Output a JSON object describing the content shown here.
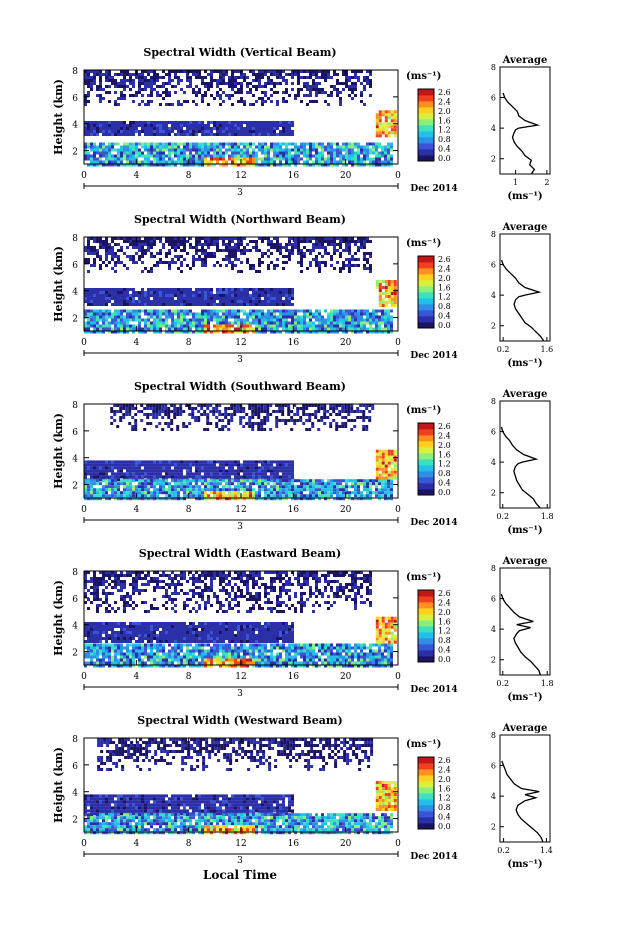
{
  "figure": {
    "y_label": "Height (km)",
    "x_label": "Local Time",
    "date_label": "Dec 2014",
    "day_label": "3",
    "unit_label": "(ms⁻¹)",
    "average_title": "Average",
    "average_unit": "(ms⁻¹)"
  },
  "colorbar": {
    "ticks": [
      "2.6",
      "2.4",
      "2.0",
      "1.6",
      "1.2",
      "0.8",
      "0.4",
      "0.0"
    ],
    "vmin": 0.0,
    "vmax": 2.8,
    "colors": [
      "#1b1464",
      "#2b2fa8",
      "#3a55d6",
      "#2f8fe6",
      "#20c0e8",
      "#3fe0c0",
      "#8af07a",
      "#d8f040",
      "#ffd020",
      "#ff9020",
      "#f04020",
      "#c01818"
    ]
  },
  "chart_data": [
    {
      "type": "heatmap",
      "title": "Spectral Width (Vertical Beam)",
      "beam": "vertical",
      "xlabel": "",
      "ylabel": "Height (km)",
      "xlim": [
        0,
        24
      ],
      "ylim": [
        1,
        8
      ],
      "xticks": [
        "0",
        "4",
        "8",
        "12",
        "16",
        "20",
        "0"
      ],
      "yticks": [
        "2",
        "4",
        "6",
        "8"
      ],
      "clouds": [
        {
          "layer": "upper",
          "x": [
            0,
            22
          ],
          "y": [
            5.4,
            8
          ],
          "value": 0.2
        },
        {
          "layer": "middle",
          "x": [
            0,
            16
          ],
          "y": [
            3.2,
            4.2
          ],
          "value": 0.3
        },
        {
          "layer": "lower",
          "x": [
            0,
            23.5
          ],
          "y": [
            1,
            2.6
          ],
          "value": 0.8
        },
        {
          "layer": "top-right",
          "x": [
            22.3,
            23.9
          ],
          "y": [
            3.2,
            5
          ],
          "value": 2.4
        }
      ],
      "average": {
        "title": "Average",
        "xticks": [
          "1",
          "2"
        ],
        "xlim": [
          0.5,
          2.1
        ],
        "yticks": [
          "2",
          "4",
          "6",
          "8"
        ],
        "ylim": [
          1,
          8
        ],
        "x": [
          1.5,
          1.6,
          1.45,
          1.5,
          1.3,
          1.2,
          1.05,
          0.95,
          0.9,
          0.95,
          1.0,
          1.1,
          1.7,
          1.3,
          1.1,
          1.05,
          0.9,
          0.75,
          0.65,
          0.6
        ],
        "y": [
          1.0,
          1.3,
          1.6,
          1.9,
          2.2,
          2.5,
          2.8,
          3.1,
          3.4,
          3.7,
          3.9,
          4.0,
          4.2,
          4.5,
          4.8,
          5.1,
          5.4,
          5.7,
          6.0,
          6.3
        ]
      }
    },
    {
      "type": "heatmap",
      "title": "Spectral Width (Northward Beam)",
      "beam": "northward",
      "xlabel": "",
      "ylabel": "Height (km)",
      "xlim": [
        0,
        24
      ],
      "ylim": [
        1,
        8
      ],
      "xticks": [
        "0",
        "4",
        "8",
        "12",
        "16",
        "20",
        "0"
      ],
      "yticks": [
        "2",
        "4",
        "6",
        "8"
      ],
      "clouds": [
        {
          "layer": "upper",
          "x": [
            0,
            22
          ],
          "y": [
            5.4,
            8
          ],
          "value": 0.2
        },
        {
          "layer": "middle",
          "x": [
            0,
            16
          ],
          "y": [
            3.0,
            4.2
          ],
          "value": 0.3
        },
        {
          "layer": "lower",
          "x": [
            0,
            23.5
          ],
          "y": [
            1,
            2.6
          ],
          "value": 0.8
        },
        {
          "layer": "top-right",
          "x": [
            22.3,
            23.9
          ],
          "y": [
            3.0,
            4.8
          ],
          "value": 2.4
        }
      ],
      "average": {
        "title": "Average",
        "xticks": [
          "0.2",
          "1.6"
        ],
        "xlim": [
          0.1,
          1.7
        ],
        "yticks": [
          "2",
          "4",
          "6",
          "8"
        ],
        "ylim": [
          1,
          8
        ],
        "x": [
          1.5,
          1.4,
          1.25,
          1.1,
          0.9,
          0.8,
          0.7,
          0.6,
          0.55,
          0.6,
          0.7,
          0.9,
          1.35,
          0.9,
          0.7,
          0.6,
          0.45,
          0.3,
          0.2,
          0.15
        ],
        "y": [
          1.0,
          1.3,
          1.6,
          1.9,
          2.2,
          2.5,
          2.8,
          3.1,
          3.4,
          3.7,
          3.9,
          4.0,
          4.2,
          4.5,
          4.8,
          5.1,
          5.4,
          5.7,
          6.0,
          6.3
        ]
      }
    },
    {
      "type": "heatmap",
      "title": "Spectral Width (Southward Beam)",
      "beam": "southward",
      "xlabel": "",
      "ylabel": "Height (km)",
      "xlim": [
        0,
        24
      ],
      "ylim": [
        1,
        8
      ],
      "xticks": [
        "0",
        "4",
        "8",
        "12",
        "16",
        "20",
        "0"
      ],
      "yticks": [
        "2",
        "4",
        "6",
        "8"
      ],
      "clouds": [
        {
          "layer": "upper",
          "x": [
            2,
            22
          ],
          "y": [
            6.0,
            8
          ],
          "value": 0.2
        },
        {
          "layer": "middle",
          "x": [
            0,
            16
          ],
          "y": [
            2.4,
            3.8
          ],
          "value": 0.3
        },
        {
          "layer": "lower",
          "x": [
            0,
            23.5
          ],
          "y": [
            1,
            2.4
          ],
          "value": 0.8
        },
        {
          "layer": "top-right",
          "x": [
            22.3,
            23.9
          ],
          "y": [
            2.4,
            4.6
          ],
          "value": 2.2
        }
      ],
      "average": {
        "title": "Average",
        "xticks": [
          "0.2",
          "1.8"
        ],
        "xlim": [
          0.1,
          1.9
        ],
        "yticks": [
          "2",
          "4",
          "6",
          "8"
        ],
        "ylim": [
          1,
          8
        ],
        "x": [
          1.55,
          1.4,
          1.3,
          1.1,
          0.9,
          0.8,
          0.7,
          0.65,
          0.6,
          0.65,
          0.75,
          0.9,
          1.4,
          0.95,
          0.7,
          0.55,
          0.45,
          0.3,
          0.2,
          0.15
        ],
        "y": [
          1.0,
          1.3,
          1.6,
          1.9,
          2.2,
          2.5,
          2.8,
          3.1,
          3.4,
          3.7,
          3.9,
          4.0,
          4.2,
          4.5,
          4.8,
          5.1,
          5.4,
          5.7,
          6.0,
          6.3
        ]
      }
    },
    {
      "type": "heatmap",
      "title": "Spectral Width (Eastward Beam)",
      "beam": "eastward",
      "xlabel": "",
      "ylabel": "Height (km)",
      "xlim": [
        0,
        24
      ],
      "ylim": [
        1,
        8
      ],
      "xticks": [
        "0",
        "4",
        "8",
        "12",
        "16",
        "20",
        "0"
      ],
      "yticks": [
        "2",
        "4",
        "6",
        "8"
      ],
      "clouds": [
        {
          "layer": "upper",
          "x": [
            0,
            22
          ],
          "y": [
            5.0,
            8
          ],
          "value": 0.2
        },
        {
          "layer": "middle",
          "x": [
            0,
            16
          ],
          "y": [
            2.8,
            4.2
          ],
          "value": 0.3
        },
        {
          "layer": "lower",
          "x": [
            0,
            23.5
          ],
          "y": [
            1,
            2.6
          ],
          "value": 0.9
        },
        {
          "layer": "top-right",
          "x": [
            22.3,
            23.9
          ],
          "y": [
            2.8,
            4.6
          ],
          "value": 2.4
        }
      ],
      "average": {
        "title": "Average",
        "xticks": [
          "0.2",
          "1.8"
        ],
        "xlim": [
          0.1,
          1.9
        ],
        "yticks": [
          "2",
          "4",
          "6",
          "8"
        ],
        "ylim": [
          1,
          8
        ],
        "x": [
          1.55,
          1.5,
          1.35,
          1.2,
          1.0,
          0.85,
          0.75,
          0.65,
          0.6,
          0.7,
          0.8,
          1.2,
          0.7,
          1.3,
          0.8,
          0.6,
          0.45,
          0.3,
          0.2,
          0.15
        ],
        "y": [
          1.0,
          1.3,
          1.6,
          1.9,
          2.2,
          2.5,
          2.8,
          3.1,
          3.4,
          3.7,
          3.9,
          4.1,
          4.3,
          4.5,
          4.8,
          5.1,
          5.4,
          5.7,
          6.0,
          6.3
        ]
      }
    },
    {
      "type": "heatmap",
      "title": "Spectral Width (Westward Beam)",
      "beam": "westward",
      "xlabel": "Local Time",
      "ylabel": "Height (km)",
      "xlim": [
        0,
        24
      ],
      "ylim": [
        1,
        8
      ],
      "xticks": [
        "0",
        "4",
        "8",
        "12",
        "16",
        "20",
        "0"
      ],
      "yticks": [
        "2",
        "4",
        "6",
        "8"
      ],
      "clouds": [
        {
          "layer": "upper",
          "x": [
            1,
            22
          ],
          "y": [
            5.6,
            8
          ],
          "value": 0.2
        },
        {
          "layer": "middle",
          "x": [
            0,
            16
          ],
          "y": [
            2.4,
            3.8
          ],
          "value": 0.3
        },
        {
          "layer": "lower",
          "x": [
            0,
            23.5
          ],
          "y": [
            1,
            2.4
          ],
          "value": 0.8
        },
        {
          "layer": "top-right",
          "x": [
            22.3,
            23.9
          ],
          "y": [
            2.6,
            4.8
          ],
          "value": 2.2
        }
      ],
      "average": {
        "title": "Average",
        "xticks": [
          "0.2",
          "1.4"
        ],
        "xlim": [
          0.1,
          1.5
        ],
        "yticks": [
          "2",
          "4",
          "6",
          "8"
        ],
        "ylim": [
          1,
          8
        ],
        "x": [
          1.3,
          1.25,
          1.15,
          1.0,
          0.85,
          0.7,
          0.6,
          0.55,
          0.6,
          0.8,
          1.1,
          0.8,
          1.2,
          0.7,
          0.5,
          0.4,
          0.3,
          0.25,
          0.2,
          0.15
        ],
        "y": [
          1.0,
          1.3,
          1.6,
          1.9,
          2.2,
          2.5,
          2.8,
          3.1,
          3.4,
          3.7,
          3.9,
          4.1,
          4.3,
          4.5,
          4.8,
          5.1,
          5.4,
          5.7,
          6.0,
          6.3
        ]
      }
    }
  ]
}
